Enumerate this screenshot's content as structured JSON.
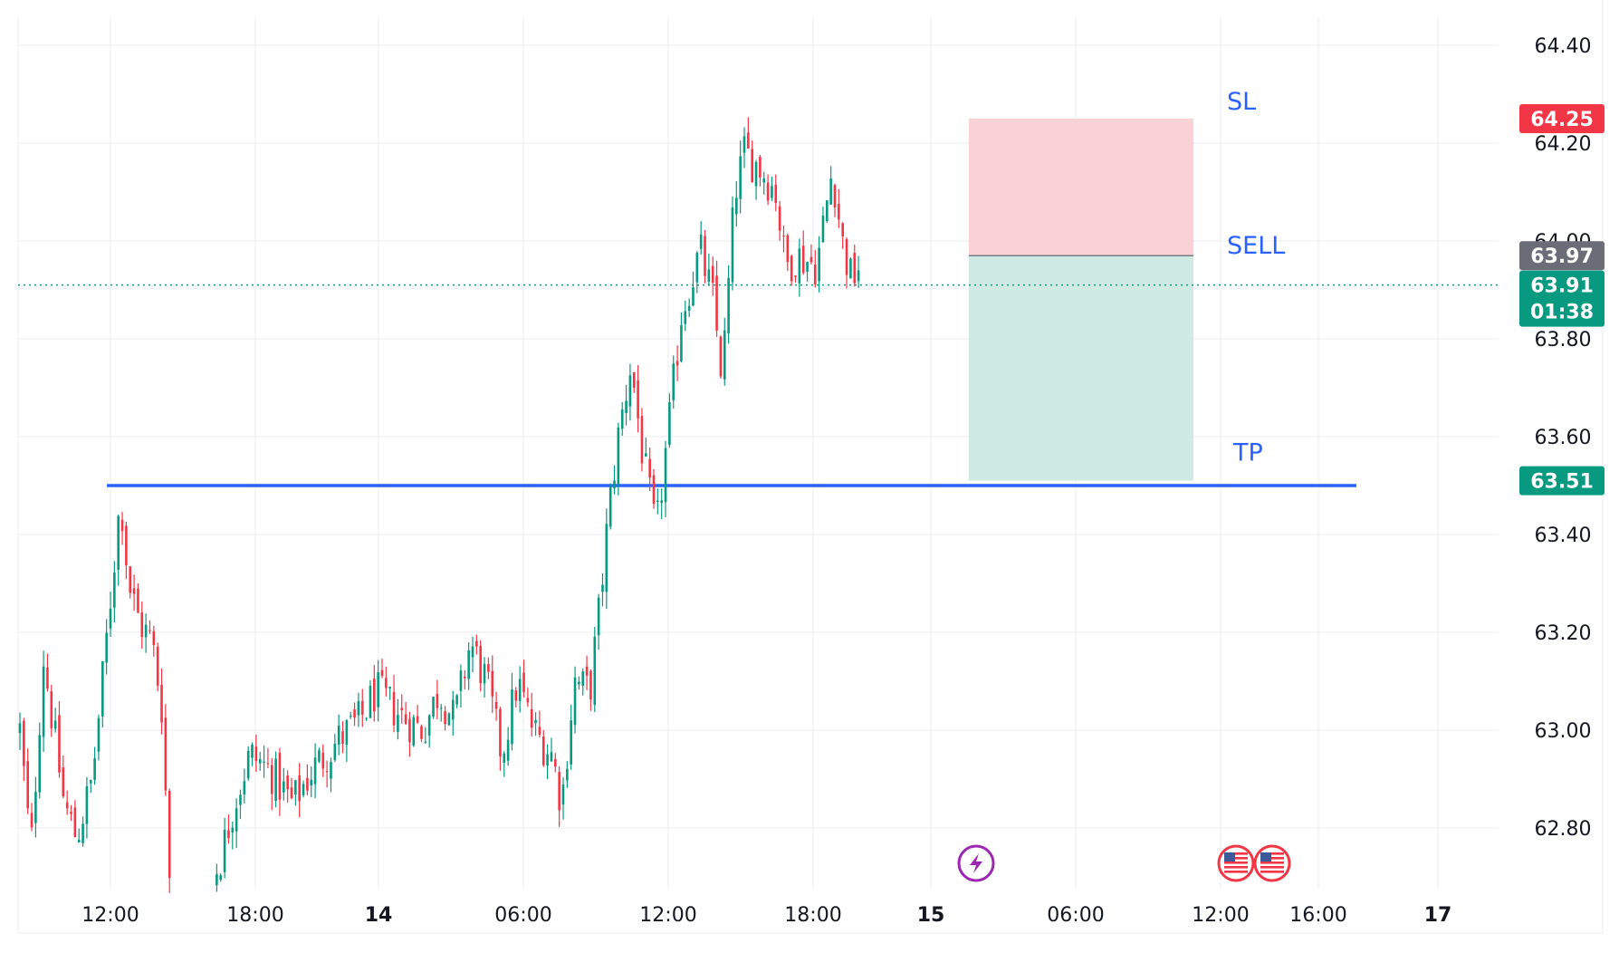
{
  "colors": {
    "up": "#089981",
    "down": "#f23645",
    "grid": "#ecedf0",
    "axis_text": "#131722",
    "level_line": "#2962ff",
    "sl_zone": "#f9d2d6",
    "tp_zone": "#cfeae3",
    "entry_line": "#787b86",
    "last_price_line": "#089981",
    "event_purple": "#9c27b0"
  },
  "chart_data": {
    "type": "candlestick",
    "y_axis": {
      "range": [
        62.68,
        64.5
      ],
      "ticks": [
        "62.80",
        "63.00",
        "63.20",
        "63.40",
        "63.60",
        "63.80",
        "64.00",
        "64.20",
        "64.40"
      ],
      "side": "right"
    },
    "x_axis": {
      "ticks": [
        {
          "label": "12:00",
          "bold": false
        },
        {
          "label": "18:00",
          "bold": false
        },
        {
          "label": "14",
          "bold": true
        },
        {
          "label": "06:00",
          "bold": false
        },
        {
          "label": "12:00",
          "bold": false
        },
        {
          "label": "18:00",
          "bold": false
        },
        {
          "label": "15",
          "bold": true
        },
        {
          "label": "06:00",
          "bold": false
        },
        {
          "label": "12:00",
          "bold": false
        },
        {
          "label": "16:00",
          "bold": false
        },
        {
          "label": "17",
          "bold": true
        }
      ]
    },
    "grid": true,
    "series_path": [
      [
        0,
        63.0
      ],
      [
        0.7,
        62.75
      ],
      [
        1.5,
        63.15
      ],
      [
        2.8,
        62.85
      ],
      [
        3.6,
        62.78
      ],
      [
        4.6,
        62.9
      ],
      [
        5.3,
        63.12
      ],
      [
        6.0,
        63.35
      ],
      [
        6.4,
        63.48
      ],
      [
        6.9,
        63.3
      ],
      [
        7.6,
        63.22
      ],
      [
        8.4,
        63.18
      ],
      [
        9.0,
        63.05
      ],
      [
        9.5,
        62.7
      ],
      [
        12.6,
        62.72
      ],
      [
        13.6,
        62.85
      ],
      [
        14.6,
        62.95
      ],
      [
        15.8,
        62.92
      ],
      [
        17.3,
        62.85
      ],
      [
        18.6,
        62.92
      ],
      [
        20.2,
        62.98
      ],
      [
        21.6,
        63.02
      ],
      [
        22.6,
        63.08
      ],
      [
        24.2,
        63.03
      ],
      [
        25.6,
        63.0
      ],
      [
        26.6,
        63.08
      ],
      [
        27.6,
        63.02
      ],
      [
        28.6,
        63.18
      ],
      [
        29.6,
        63.1
      ],
      [
        30.6,
        62.95
      ],
      [
        31.6,
        63.1
      ],
      [
        32.6,
        63.0
      ],
      [
        33.8,
        62.95
      ],
      [
        34.4,
        62.85
      ],
      [
        35.2,
        63.1
      ],
      [
        36.2,
        63.08
      ],
      [
        36.8,
        63.25
      ],
      [
        37.4,
        63.45
      ],
      [
        38.0,
        63.6
      ],
      [
        38.8,
        63.75
      ],
      [
        39.6,
        63.55
      ],
      [
        40.4,
        63.4
      ],
      [
        41.2,
        63.62
      ],
      [
        42.0,
        63.85
      ],
      [
        43.2,
        63.98
      ],
      [
        44.0,
        63.88
      ],
      [
        44.6,
        63.72
      ],
      [
        45.4,
        64.1
      ],
      [
        46.0,
        64.18
      ],
      [
        47.0,
        64.15
      ],
      [
        48.0,
        64.1
      ],
      [
        48.6,
        63.95
      ],
      [
        49.4,
        63.97
      ],
      [
        50.6,
        63.95
      ],
      [
        51.6,
        64.15
      ],
      [
        52.2,
        64.0
      ],
      [
        52.8,
        63.92
      ],
      [
        53.3,
        63.95
      ]
    ],
    "levels": [
      {
        "name": "horizontal-level",
        "price": 63.5
      }
    ],
    "position": {
      "side": "short",
      "entry": 63.97,
      "stop_loss": 64.25,
      "take_profit": 63.51
    },
    "annotations": [
      {
        "id": "sl",
        "text": "SL"
      },
      {
        "id": "sell",
        "text": "SELL"
      },
      {
        "id": "tp",
        "text": "TP"
      }
    ],
    "price_tags": {
      "sl": "64.25",
      "entry": "63.97",
      "last": "63.91",
      "countdown": "01:38",
      "tp": "63.51"
    },
    "events": [
      {
        "icon": "lightning-icon"
      },
      {
        "icon": "us-flag-icon"
      },
      {
        "icon": "us-flag-icon"
      }
    ]
  }
}
